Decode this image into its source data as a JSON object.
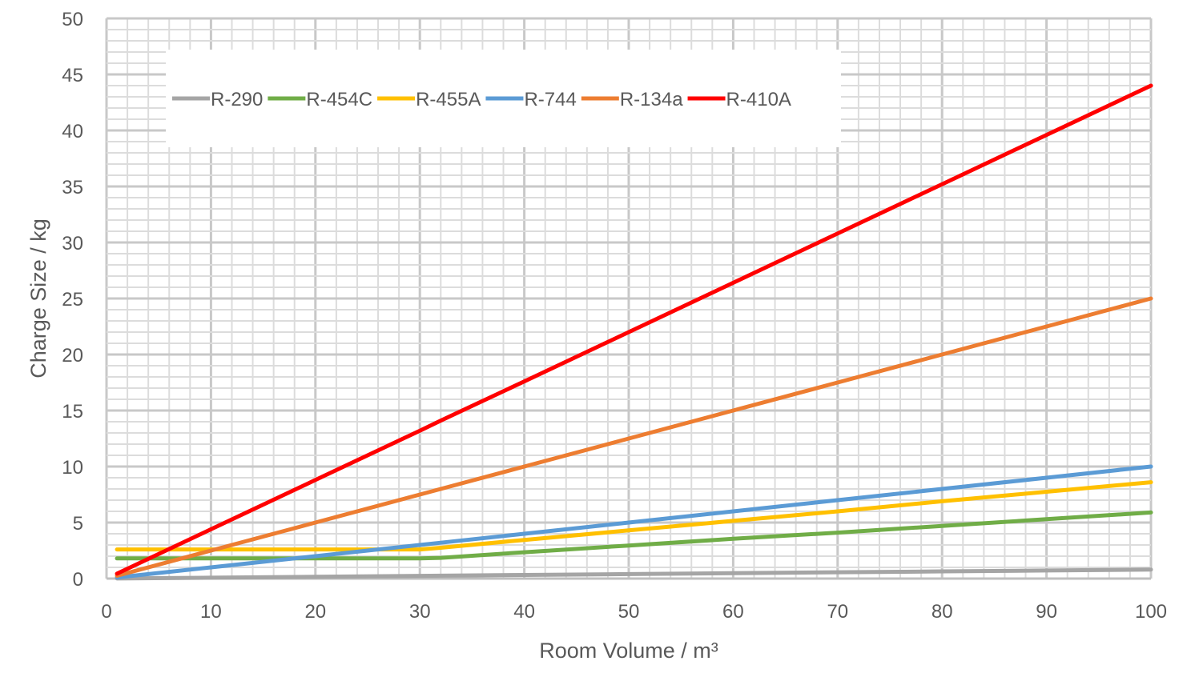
{
  "chart_data": {
    "type": "line",
    "title": "",
    "xlabel": "Room Volume / m³",
    "ylabel": "Charge Size / kg",
    "xlim": [
      0,
      100
    ],
    "ylim": [
      0,
      50
    ],
    "xticks": [
      "0",
      "10",
      "20",
      "30",
      "40",
      "50",
      "60",
      "70",
      "80",
      "90",
      "100"
    ],
    "yticks": [
      "0",
      "5",
      "10",
      "15",
      "20",
      "25",
      "30",
      "35",
      "40",
      "45",
      "50"
    ],
    "grid": true,
    "legend_position": "top-left",
    "x": [
      1,
      10,
      20,
      30,
      32,
      40,
      50,
      60,
      70,
      80,
      90,
      100
    ],
    "series": [
      {
        "name": "R-290",
        "color": "#a5a5a5",
        "values": [
          0.01,
          0.08,
          0.16,
          0.24,
          0.26,
          0.32,
          0.4,
          0.48,
          0.56,
          0.64,
          0.72,
          0.8
        ]
      },
      {
        "name": "R-454C",
        "color": "#70ad47",
        "values": [
          1.8,
          1.8,
          1.8,
          1.8,
          1.85,
          2.35,
          2.95,
          3.55,
          4.1,
          4.7,
          5.3,
          5.9
        ]
      },
      {
        "name": "R-455A",
        "color": "#ffc000",
        "values": [
          2.6,
          2.6,
          2.6,
          2.6,
          2.75,
          3.45,
          4.3,
          5.15,
          6.0,
          6.9,
          7.75,
          8.6
        ]
      },
      {
        "name": "R-744",
        "color": "#5b9bd5",
        "values": [
          0.1,
          1.0,
          2.0,
          3.0,
          3.2,
          4.0,
          5.0,
          6.0,
          7.0,
          8.0,
          9.0,
          10.0
        ]
      },
      {
        "name": "R-134a",
        "color": "#ed7d31",
        "values": [
          0.25,
          2.5,
          5.0,
          7.5,
          8.0,
          10.0,
          12.5,
          15.0,
          17.5,
          20.0,
          22.5,
          25.0
        ]
      },
      {
        "name": "R-410A",
        "color": "#ff0000",
        "values": [
          0.44,
          4.4,
          8.8,
          13.2,
          14.1,
          17.6,
          22.0,
          26.4,
          30.8,
          35.2,
          39.6,
          44.0
        ]
      }
    ]
  }
}
